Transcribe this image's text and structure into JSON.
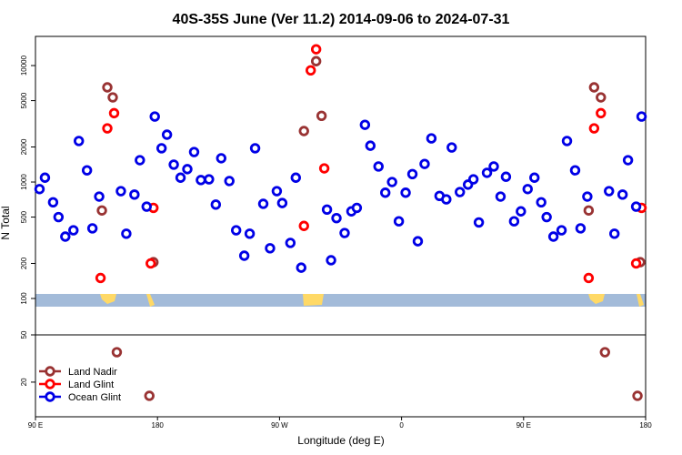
{
  "chart_data": [
    {
      "type": "scatter",
      "title": "40S-35S June (Ver 11.2)   2014-09-06 to 2024-07-31",
      "ylabel": "N Total",
      "log_y": true,
      "ylim": [
        48.7,
        17800
      ],
      "yticks": [
        100,
        200,
        500,
        1000,
        2000,
        5000,
        10000
      ],
      "xlim": [
        90,
        540
      ],
      "legend": "lower left",
      "series": [
        {
          "name": "Land Nadir",
          "color": "#993333",
          "x": [
            139,
            143,
            147,
            177,
            288,
            297,
            301,
            498,
            502,
            507,
            536
          ],
          "values": [
            570,
            6500,
            5330,
            205,
            2740,
            10900,
            3700,
            570,
            6500,
            5330,
            205
          ]
        },
        {
          "name": "Land Glint",
          "color": "#ff0000",
          "x": [
            138,
            143,
            148,
            175,
            177,
            288,
            293,
            297,
            303,
            498,
            502,
            507,
            533,
            537
          ],
          "values": [
            150,
            2890,
            3900,
            200,
            600,
            420,
            9100,
            13800,
            1310,
            150,
            2890,
            3900,
            200,
            600
          ]
        },
        {
          "name": "Ocean Glint",
          "color": "#0000e6",
          "x": [
            93,
            97,
            103,
            107,
            112,
            118,
            122,
            128,
            132,
            137,
            153,
            157,
            163,
            167,
            172,
            178,
            183,
            187,
            192,
            197,
            202,
            207,
            212,
            218,
            223,
            227,
            233,
            238,
            244,
            248,
            252,
            258,
            263,
            268,
            272,
            278,
            282,
            286,
            305,
            308,
            312,
            318,
            323,
            327,
            333,
            337,
            343,
            348,
            353,
            358,
            363,
            368,
            372,
            377,
            382,
            388,
            393,
            397,
            403,
            409,
            413,
            417,
            423,
            428,
            433,
            437,
            443,
            448,
            453,
            458,
            463,
            467,
            472,
            478,
            482,
            488,
            492,
            497,
            513,
            517,
            523,
            527,
            533,
            537
          ],
          "values": [
            870,
            1090,
            670,
            500,
            340,
            385,
            2250,
            1260,
            400,
            750,
            835,
            360,
            780,
            1540,
            615,
            3650,
            1950,
            2550,
            1410,
            1090,
            1290,
            1810,
            1040,
            1055,
            640,
            1600,
            1020,
            385,
            233,
            360,
            1950,
            650,
            270,
            835,
            660,
            300,
            1090,
            184,
            580,
            213,
            490,
            365,
            560,
            600,
            3100,
            2050,
            1360,
            810,
            1000,
            460,
            810,
            1170,
            310,
            1430,
            2370,
            760,
            710,
            1980,
            820,
            950,
            1055,
            450,
            1200,
            1360,
            750,
            1110,
            460,
            560,
            870,
            1090,
            670,
            500,
            340,
            385,
            2250,
            1260,
            400,
            750,
            835,
            360,
            780,
            1540,
            615,
            3650
          ]
        }
      ]
    },
    {
      "type": "scatter",
      "xlabel": "Longitude (deg E)",
      "xlim": [
        90,
        540
      ],
      "xticks": [
        {
          "value": 90,
          "label": "90 E"
        },
        180,
        {
          "value": 270,
          "label": "90 W"
        },
        {
          "value": 360,
          "label": "0"
        },
        {
          "value": 450,
          "label": "90 E"
        },
        {
          "value": 540,
          "label": "180"
        }
      ],
      "ylim": [
        -2,
        50
      ],
      "yticks": [
        20,
        50
      ],
      "series": [
        {
          "color": "#993333",
          "x": [
            150,
            174,
            510,
            534
          ],
          "values": [
            39,
            11.3,
            39,
            11.3
          ]
        }
      ]
    }
  ]
}
